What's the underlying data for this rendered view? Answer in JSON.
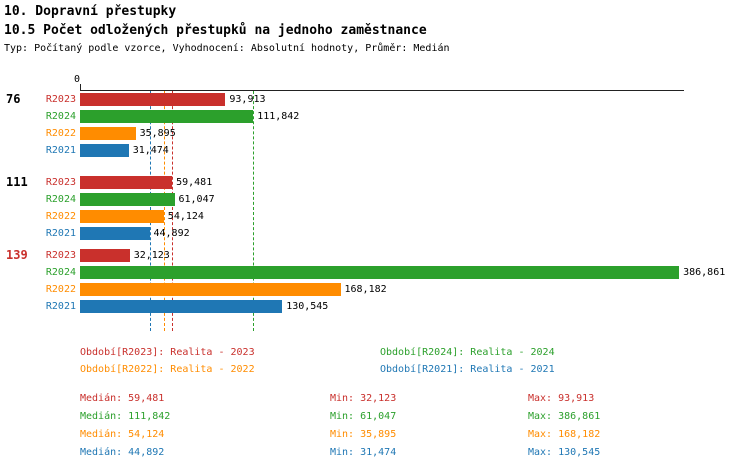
{
  "header": {
    "title": "10. Dopravní přestupky",
    "subtitle": "10.5 Počet odložených přestupků na jednoho zaměstnance",
    "meta": "Typ: Počítaný podle vzorce, Vyhodnocení: Absolutní hodnoty, Průměr: Medián"
  },
  "colors": {
    "R2023": "#c9302c",
    "R2024": "#2ca02c",
    "R2022": "#ff8c00",
    "R2021": "#1f77b4",
    "axis": "#222222",
    "value_label": "#000000"
  },
  "chart_data": {
    "type": "bar",
    "orientation": "horizontal",
    "title": "10.5 Počet odložených přestupků na jednoho zaměstnance",
    "axis": {
      "origin_label": "0",
      "xmin": 0,
      "xmax": 390000
    },
    "series_order": [
      "R2023",
      "R2024",
      "R2022",
      "R2021"
    ],
    "groups": [
      {
        "label": "76",
        "label_color": "#000000",
        "bars": [
          {
            "series": "R2023",
            "value": 93913,
            "display": "93,913"
          },
          {
            "series": "R2024",
            "value": 111842,
            "display": "111,842"
          },
          {
            "series": "R2022",
            "value": 35895,
            "display": "35,895"
          },
          {
            "series": "R2021",
            "value": 31474,
            "display": "31,474"
          }
        ]
      },
      {
        "label": "111",
        "label_color": "#000000",
        "bars": [
          {
            "series": "R2023",
            "value": 59481,
            "display": "59,481"
          },
          {
            "series": "R2024",
            "value": 61047,
            "display": "61,047"
          },
          {
            "series": "R2022",
            "value": 54124,
            "display": "54,124"
          },
          {
            "series": "R2021",
            "value": 44892,
            "display": "44,892"
          }
        ]
      },
      {
        "label": "139",
        "label_color": "#c9302c",
        "bars": [
          {
            "series": "R2023",
            "value": 32123,
            "display": "32,123"
          },
          {
            "series": "R2024",
            "value": 386861,
            "display": "386,861"
          },
          {
            "series": "R2022",
            "value": 168182,
            "display": "168,182"
          },
          {
            "series": "R2021",
            "value": 130545,
            "display": "130,545"
          }
        ]
      }
    ],
    "medians": [
      {
        "series": "R2023",
        "value": 59481
      },
      {
        "series": "R2024",
        "value": 111842
      },
      {
        "series": "R2022",
        "value": 54124
      },
      {
        "series": "R2021",
        "value": 44892
      }
    ]
  },
  "legend": [
    {
      "series": "R2023",
      "label": "Období[R2023]: Realita - 2023"
    },
    {
      "series": "R2024",
      "label": "Období[R2024]: Realita - 2024"
    },
    {
      "series": "R2022",
      "label": "Období[R2022]: Realita - 2022"
    },
    {
      "series": "R2021",
      "label": "Období[R2021]: Realita - 2021"
    }
  ],
  "stats": [
    {
      "series": "R2023",
      "median": "Medián: 59,481",
      "min": "Min: 32,123",
      "max": "Max: 93,913"
    },
    {
      "series": "R2024",
      "median": "Medián: 111,842",
      "min": "Min: 61,047",
      "max": "Max: 386,861"
    },
    {
      "series": "R2022",
      "median": "Medián: 54,124",
      "min": "Min: 35,895",
      "max": "Max: 168,182"
    },
    {
      "series": "R2021",
      "median": "Medián: 44,892",
      "min": "Min: 31,474",
      "max": "Max: 130,545"
    }
  ]
}
